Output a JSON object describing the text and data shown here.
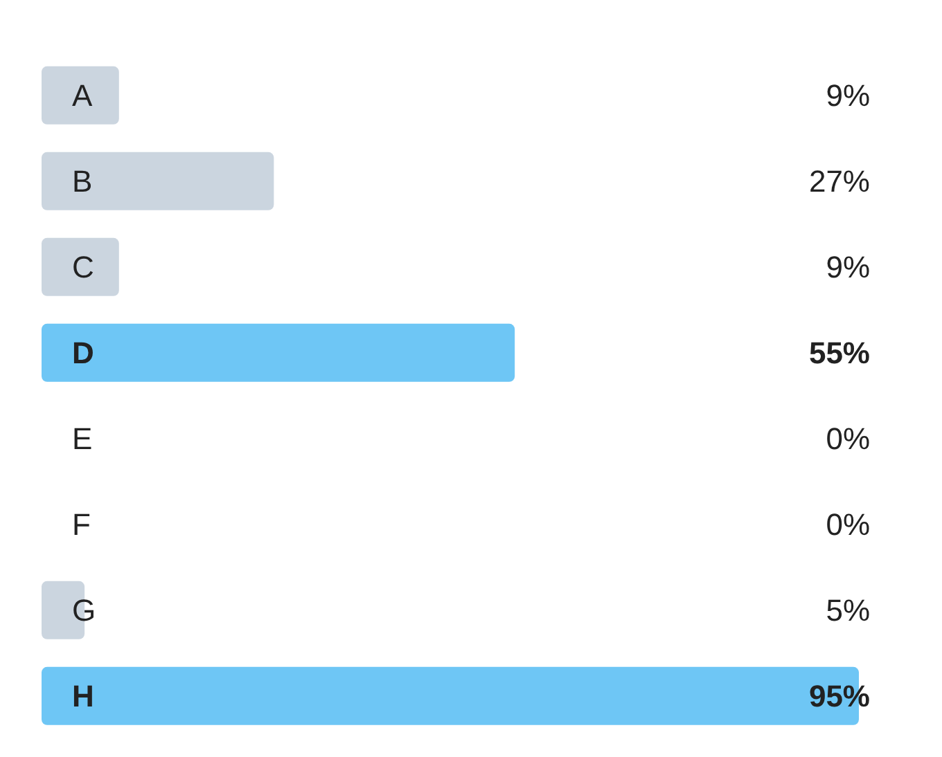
{
  "chart_data": {
    "type": "bar",
    "orientation": "horizontal",
    "categories": [
      "A",
      "B",
      "C",
      "D",
      "E",
      "F",
      "G",
      "H"
    ],
    "values": [
      9,
      27,
      9,
      55,
      0,
      0,
      5,
      95
    ],
    "colors": [
      "#cbd5df",
      "#cbd5df",
      "#cbd5df",
      "#6ec6f5",
      "#cbd5df",
      "#cbd5df",
      "#cbd5df",
      "#6ec6f5"
    ],
    "value_labels": [
      "9%",
      "27%",
      "9%",
      "55%",
      "0%",
      "0%",
      "5%",
      "95%"
    ],
    "grid": false,
    "legend": false
  }
}
